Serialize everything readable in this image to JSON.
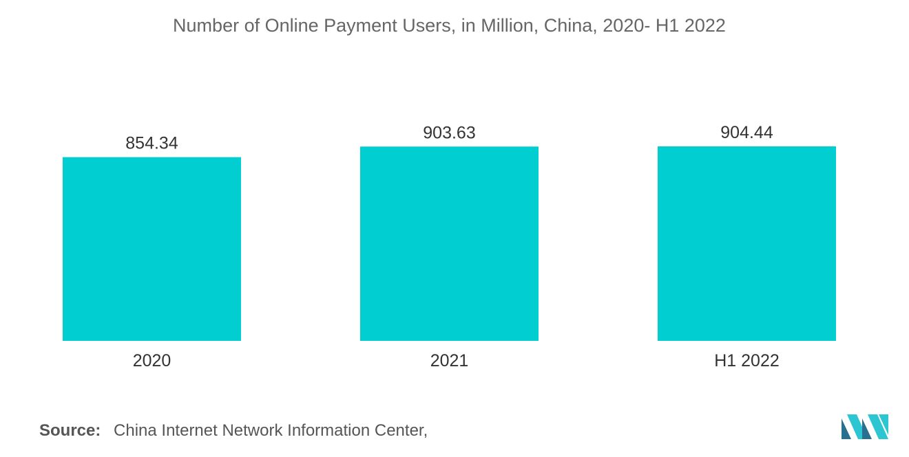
{
  "colors": {
    "bar": "#00CED1",
    "logo_dark": "#2b6f8e",
    "logo_light": "#2cc6d3"
  },
  "chart_data": {
    "type": "bar",
    "title": "Number of Online Payment Users, in Million, China, 2020- H1 2022",
    "categories": [
      "2020",
      "2021",
      "H1 2022"
    ],
    "values": [
      854.34,
      903.63,
      904.44
    ],
    "value_labels": [
      "854.34",
      "903.63",
      "904.44"
    ],
    "xlabel": "",
    "ylabel": "",
    "grid": false,
    "legend": "none"
  },
  "source": {
    "label": "Source:",
    "text": "China Internet Network Information Center,"
  },
  "logo": {
    "icon": "mordor-intelligence-logo-icon"
  }
}
